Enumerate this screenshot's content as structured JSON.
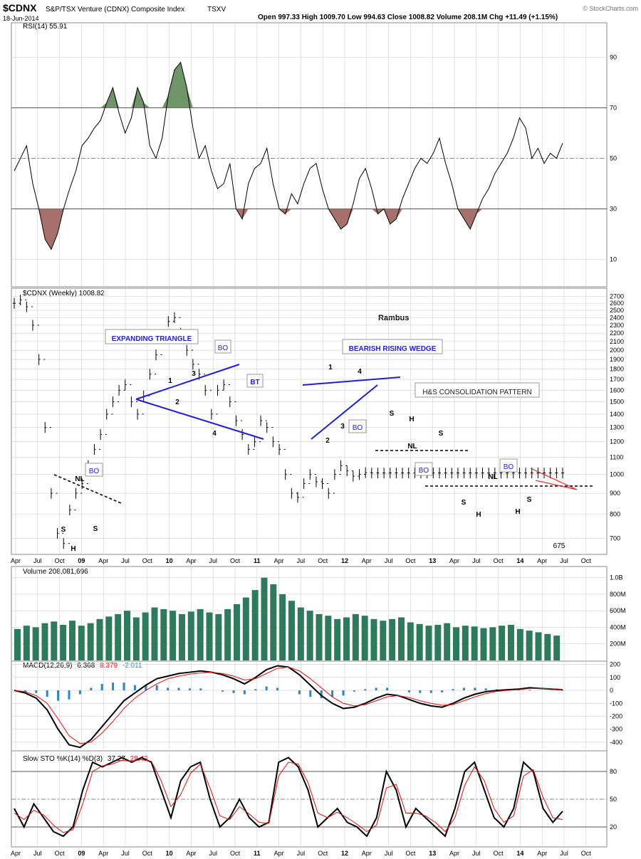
{
  "header": {
    "symbol": "$CDNX",
    "name": "S&P/TSX Venture (CDNX) Composite Index",
    "exchange": "TSXV",
    "date": "18-Jun-2014",
    "ohlc": "Open 997.33  High 1009.70  Low 994.63  Close 1008.82  Volume 208.1M  Chg +11.49 (+1.15%)",
    "watermark": "© StockCharts.com"
  },
  "colors": {
    "price": "#000000",
    "annotation_blue": "#1f1fd6",
    "rsi_over": "#6e9468",
    "rsi_under": "#a8706a",
    "volume": "#2e7a5e",
    "signal": "#e01010",
    "histogram": "#2f86c0",
    "grid": "#cfcfcf"
  },
  "chart_data": [
    {
      "type": "line",
      "id": "rsi",
      "legend": "RSI(14) 55.91",
      "ylim": [
        0,
        100
      ],
      "yticks": [
        10,
        30,
        50,
        70,
        90
      ],
      "reference_lines": [
        30,
        50,
        70
      ],
      "x": [
        0,
        3,
        6,
        9,
        12,
        15,
        18,
        21,
        24,
        27,
        30,
        33,
        36,
        39,
        42,
        45,
        48,
        51,
        54,
        57,
        60,
        63,
        66,
        69,
        72,
        75,
        78,
        81,
        84,
        87,
        90,
        93,
        96,
        99,
        102,
        105,
        108,
        111,
        114,
        117,
        120,
        123,
        126,
        129,
        132,
        135,
        138,
        141,
        144,
        147,
        150,
        153,
        156,
        159,
        162,
        165,
        168,
        171,
        174,
        177,
        180,
        183,
        186,
        189,
        192,
        195,
        198,
        201,
        204,
        207,
        210,
        213,
        216,
        219,
        222,
        225,
        228,
        231,
        234,
        237,
        240,
        243,
        246,
        249,
        252,
        255,
        258,
        261,
        264,
        267
      ],
      "values": [
        45,
        50,
        55,
        40,
        30,
        18,
        14,
        20,
        30,
        38,
        45,
        55,
        58,
        62,
        65,
        72,
        78,
        68,
        60,
        66,
        78,
        72,
        55,
        50,
        58,
        75,
        85,
        88,
        78,
        62,
        50,
        55,
        45,
        38,
        40,
        48,
        30,
        26,
        40,
        46,
        48,
        54,
        40,
        30,
        28,
        36,
        32,
        40,
        46,
        48,
        38,
        30,
        26,
        22,
        24,
        32,
        42,
        46,
        38,
        28,
        30,
        24,
        26,
        34,
        40,
        46,
        50,
        48,
        52,
        58,
        48,
        40,
        30,
        26,
        22,
        28,
        34,
        38,
        44,
        48,
        52,
        58,
        66,
        62,
        50,
        54,
        48,
        52,
        50,
        56
      ],
      "x_start": "2008-04-04",
      "x_step_days": 14
    },
    {
      "type": "line",
      "id": "price",
      "legend": "$CDNX (Weekly) 1008.82",
      "title": "Rambus",
      "yscale": "log",
      "ylim": [
        650,
        2750
      ],
      "yticks": [
        700,
        800,
        900,
        1000,
        1100,
        1200,
        1300,
        1400,
        1500,
        1600,
        1700,
        1800,
        1900,
        2000,
        2100,
        2200,
        2300,
        2400,
        2500,
        2600,
        2700
      ],
      "x": [
        0,
        3,
        6,
        9,
        12,
        15,
        18,
        21,
        24,
        27,
        30,
        33,
        36,
        39,
        42,
        45,
        48,
        51,
        54,
        57,
        60,
        63,
        66,
        69,
        72,
        75,
        78,
        81,
        84,
        87,
        90,
        93,
        96,
        99,
        102,
        105,
        108,
        111,
        114,
        117,
        120,
        123,
        126,
        129,
        132,
        135,
        138,
        141,
        144,
        147,
        150,
        153,
        156,
        159,
        162,
        165,
        168,
        171,
        174,
        177,
        180,
        183,
        186,
        189,
        192,
        195,
        198,
        201,
        204,
        207,
        210,
        213,
        216,
        219,
        222,
        225,
        228,
        231,
        234,
        237,
        240,
        243,
        246,
        249,
        252,
        255,
        258,
        261,
        264,
        267
      ],
      "values": [
        2600,
        2650,
        2550,
        2300,
        1900,
        1300,
        900,
        720,
        680,
        820,
        900,
        950,
        1050,
        1150,
        1250,
        1400,
        1500,
        1600,
        1650,
        1500,
        1400,
        1550,
        1750,
        1950,
        2150,
        2350,
        2400,
        2200,
        2000,
        1850,
        1750,
        1600,
        1400,
        1600,
        1650,
        1500,
        1350,
        1250,
        1150,
        1200,
        1350,
        1300,
        1200,
        1150,
        1000,
        900,
        880,
        950,
        1000,
        960,
        950,
        900,
        1000,
        1050,
        1020,
        990,
        1000,
        1010,
        1008,
        1008,
        1008,
        1008,
        1008,
        1008,
        1008,
        1008,
        1008,
        1008,
        1008,
        1008,
        1008,
        1008,
        1008,
        1008,
        1008,
        1008,
        1008,
        1008,
        1008,
        1008,
        1008,
        1008,
        1008,
        1008,
        1008,
        1008,
        1008,
        1008,
        1008,
        1008
      ],
      "annotations": {
        "expanding_triangle": "EXPANDING TRIANGLE",
        "bearish_rising_wedge": "BEARISH RISING WEDGE",
        "hs_consolidation": "H&S CONSOLIDATION PATTERN",
        "bo": "BO",
        "bt": "BT",
        "nl": "NL",
        "s": "S",
        "h": "H",
        "h09": "H",
        "n1": "1",
        "n2": "2",
        "n3": "3",
        "n4": "4",
        "level_675": "675"
      }
    },
    {
      "type": "bar",
      "id": "volume",
      "legend": "Volume 208,081,696",
      "ylim": [
        0,
        1100
      ],
      "yticks": [
        "200M",
        "400M",
        "600M",
        "800M",
        "1.0B"
      ],
      "ytick_values": [
        200,
        400,
        600,
        800,
        1000
      ],
      "values": [
        380,
        420,
        400,
        450,
        470,
        430,
        480,
        420,
        450,
        500,
        530,
        560,
        600,
        520,
        580,
        640,
        620,
        600,
        560,
        590,
        620,
        580,
        560,
        620,
        680,
        760,
        850,
        1000,
        920,
        800,
        720,
        640,
        600,
        560,
        540,
        500,
        520,
        560,
        540,
        500,
        480,
        500,
        520,
        460,
        440,
        420,
        430,
        450,
        400,
        420,
        410,
        390,
        400,
        420,
        430,
        380,
        360,
        340,
        320,
        300
      ]
    },
    {
      "type": "line",
      "id": "macd",
      "legend_label": "MACD(12,26,9)",
      "legend_values": [
        "6.368",
        "8.379",
        "-2.011"
      ],
      "ylim": [
        -450,
        220
      ],
      "yticks": [
        200,
        100,
        0,
        -100,
        -200,
        -300,
        -400
      ],
      "series": [
        {
          "values": [
            0,
            -20,
            -60,
            -150,
            -300,
            -420,
            -440,
            -380,
            -280,
            -180,
            -80,
            -20,
            40,
            90,
            110,
            130,
            140,
            150,
            140,
            120,
            90,
            50,
            100,
            160,
            190,
            180,
            120,
            40,
            -40,
            -100,
            -140,
            -130,
            -100,
            -60,
            -30,
            -40,
            -70,
            -100,
            -120,
            -130,
            -100,
            -60,
            -30,
            -10,
            0,
            5,
            10,
            20,
            15,
            10,
            5
          ]
        },
        {
          "values": [
            0,
            -10,
            -40,
            -100,
            -220,
            -350,
            -410,
            -400,
            -330,
            -240,
            -140,
            -60,
            0,
            50,
            90,
            110,
            125,
            135,
            140,
            130,
            110,
            80,
            90,
            130,
            170,
            180,
            150,
            90,
            20,
            -50,
            -100,
            -120,
            -110,
            -80,
            -50,
            -40,
            -55,
            -80,
            -100,
            -115,
            -110,
            -80,
            -50,
            -25,
            -8,
            0,
            5,
            15,
            15,
            12,
            8
          ]
        }
      ],
      "histogram": [
        0,
        -10,
        -20,
        -50,
        -80,
        -70,
        -30,
        20,
        50,
        60,
        60,
        40,
        40,
        40,
        20,
        20,
        15,
        15,
        0,
        -10,
        -20,
        -30,
        10,
        30,
        20,
        0,
        -30,
        -50,
        -60,
        -50,
        -40,
        -10,
        10,
        20,
        20,
        0,
        -15,
        -20,
        -20,
        -15,
        10,
        20,
        20,
        15,
        8,
        5,
        5,
        5,
        0,
        -2,
        -3
      ]
    },
    {
      "type": "line",
      "id": "stochastic",
      "legend_label": "Slow STO %K(14) %D(3)",
      "legend_values": [
        "37.27",
        "28.42"
      ],
      "ylim": [
        0,
        100
      ],
      "yticks": [
        80,
        50,
        20
      ],
      "reference_lines": [
        20,
        50,
        80
      ],
      "series": [
        {
          "values": [
            40,
            20,
            45,
            30,
            15,
            10,
            20,
            60,
            90,
            85,
            90,
            95,
            90,
            95,
            90,
            60,
            30,
            70,
            85,
            90,
            50,
            20,
            30,
            50,
            30,
            20,
            25,
            90,
            95,
            85,
            60,
            20,
            30,
            40,
            25,
            20,
            10,
            30,
            80,
            60,
            20,
            40,
            30,
            20,
            10,
            40,
            80,
            90,
            60,
            30,
            20,
            40,
            90,
            80,
            40,
            25,
            37
          ]
        },
        {
          "values": [
            35,
            28,
            38,
            33,
            22,
            14,
            17,
            45,
            80,
            86,
            88,
            92,
            91,
            93,
            91,
            70,
            42,
            55,
            78,
            88,
            62,
            32,
            28,
            42,
            34,
            25,
            24,
            75,
            90,
            88,
            68,
            35,
            30,
            36,
            30,
            23,
            15,
            22,
            62,
            66,
            35,
            35,
            32,
            25,
            15,
            30,
            65,
            85,
            70,
            40,
            25,
            32,
            75,
            82,
            52,
            30,
            28
          ]
        }
      ]
    }
  ],
  "x_axis": {
    "labels": [
      "Apr",
      "Jul",
      "Oct",
      "09",
      "Apr",
      "Jul",
      "Oct",
      "10",
      "Apr",
      "Jul",
      "Oct",
      "11",
      "Apr",
      "Jul",
      "Oct",
      "12",
      "Apr",
      "Jul",
      "Oct",
      "13",
      "Apr",
      "Jul",
      "Oct",
      "14",
      "Apr",
      "Jul",
      "Oct"
    ],
    "bold": [
      "09",
      "10",
      "11",
      "12",
      "13",
      "14"
    ]
  }
}
